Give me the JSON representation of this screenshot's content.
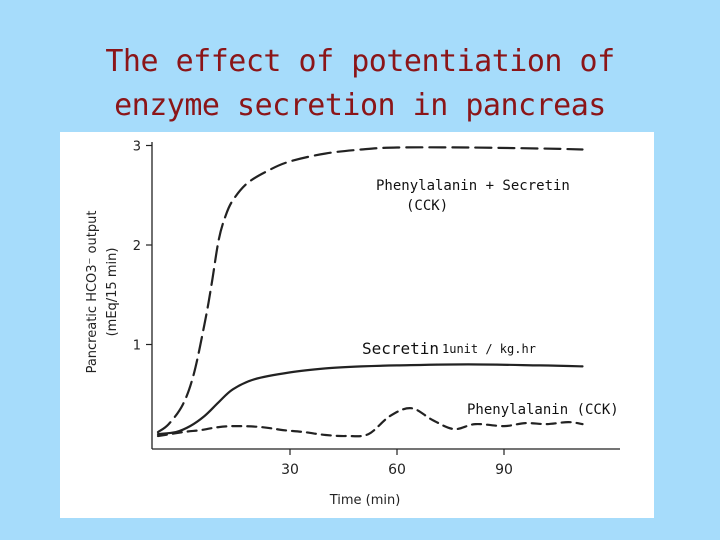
{
  "slide": {
    "title_line1": "The effect of potentiation of",
    "title_line2": "enzyme secretion in pancreas",
    "background_color": "#a6dcfb",
    "title_color": "#8b1518"
  },
  "chart_data": {
    "type": "line",
    "title": "",
    "xlabel": "Time (min)",
    "ylabel": "Pancreatic HCO3⁻ output",
    "ylabel_units": "(mEq/15 min)",
    "xlim": [
      -10,
      120
    ],
    "ylim": [
      0,
      3.1
    ],
    "x_ticks": [
      30,
      60,
      90
    ],
    "x_tick_labels": [
      "30",
      "60",
      "90"
    ],
    "y_ticks": [
      1,
      2,
      3
    ],
    "y_tick_labels": [
      "1",
      "2",
      "3"
    ],
    "grid": false,
    "series": [
      {
        "name": "Phenylalanin + Secretin",
        "name_line2": "(CCK)",
        "style": "long-dash",
        "x": [
          -7,
          -4,
          0,
          3,
          6,
          8,
          10,
          12,
          14,
          18,
          24,
          30,
          40,
          50,
          60,
          80,
          100,
          112
        ],
        "y": [
          0.12,
          0.2,
          0.4,
          0.7,
          1.2,
          1.6,
          2.05,
          2.3,
          2.45,
          2.62,
          2.75,
          2.84,
          2.92,
          2.96,
          2.98,
          2.98,
          2.97,
          2.96
        ]
      },
      {
        "name": "Secretin",
        "name_suffix": "1unit / kg.hr",
        "style": "solid",
        "x": [
          -7,
          -2,
          2,
          6,
          10,
          14,
          20,
          30,
          40,
          50,
          60,
          80,
          100,
          112
        ],
        "y": [
          0.1,
          0.12,
          0.18,
          0.28,
          0.42,
          0.55,
          0.65,
          0.72,
          0.76,
          0.78,
          0.79,
          0.8,
          0.79,
          0.78
        ]
      },
      {
        "name": "Phenylalanin (CCK)",
        "style": "short-dash",
        "x": [
          -7,
          0,
          5,
          10,
          15,
          22,
          28,
          34,
          40,
          46,
          52,
          58,
          64,
          70,
          76,
          82,
          90,
          96,
          102,
          108,
          112
        ],
        "y": [
          0.08,
          0.12,
          0.14,
          0.17,
          0.18,
          0.17,
          0.14,
          0.12,
          0.09,
          0.08,
          0.1,
          0.28,
          0.36,
          0.24,
          0.15,
          0.2,
          0.18,
          0.21,
          0.2,
          0.22,
          0.2
        ]
      }
    ]
  }
}
